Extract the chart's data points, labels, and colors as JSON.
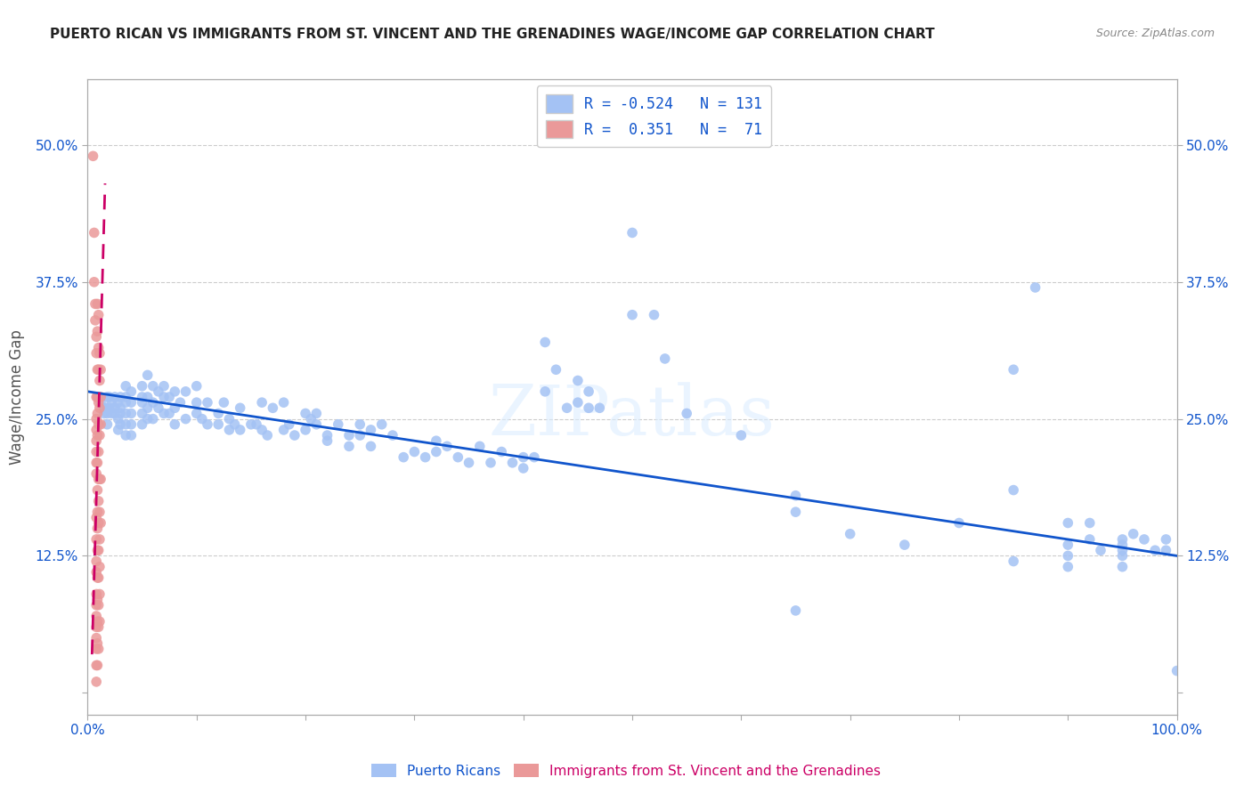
{
  "title": "PUERTO RICAN VS IMMIGRANTS FROM ST. VINCENT AND THE GRENADINES WAGE/INCOME GAP CORRELATION CHART",
  "source": "Source: ZipAtlas.com",
  "ylabel": "Wage/Income Gap",
  "ytick_labels": [
    "",
    "12.5%",
    "25.0%",
    "37.5%",
    "50.0%"
  ],
  "ytick_values": [
    0,
    0.125,
    0.25,
    0.375,
    0.5
  ],
  "xlim": [
    0,
    1.0
  ],
  "ylim": [
    -0.02,
    0.56
  ],
  "legend_r1": "R = -0.524",
  "legend_n1": "N = 131",
  "legend_r2": "R =  0.351",
  "legend_n2": "N =  71",
  "blue_color": "#a4c2f4",
  "pink_color": "#ea9999",
  "blue_line_color": "#1155cc",
  "pink_line_color": "#cc0066",
  "blue_scatter": [
    [
      0.01,
      0.27
    ],
    [
      0.012,
      0.265
    ],
    [
      0.015,
      0.26
    ],
    [
      0.015,
      0.255
    ],
    [
      0.018,
      0.27
    ],
    [
      0.018,
      0.26
    ],
    [
      0.018,
      0.255
    ],
    [
      0.018,
      0.245
    ],
    [
      0.02,
      0.27
    ],
    [
      0.02,
      0.26
    ],
    [
      0.022,
      0.265
    ],
    [
      0.022,
      0.255
    ],
    [
      0.025,
      0.27
    ],
    [
      0.025,
      0.26
    ],
    [
      0.025,
      0.255
    ],
    [
      0.028,
      0.265
    ],
    [
      0.028,
      0.25
    ],
    [
      0.028,
      0.24
    ],
    [
      0.03,
      0.27
    ],
    [
      0.03,
      0.26
    ],
    [
      0.03,
      0.255
    ],
    [
      0.03,
      0.245
    ],
    [
      0.035,
      0.28
    ],
    [
      0.035,
      0.27
    ],
    [
      0.035,
      0.265
    ],
    [
      0.035,
      0.255
    ],
    [
      0.035,
      0.245
    ],
    [
      0.035,
      0.235
    ],
    [
      0.04,
      0.275
    ],
    [
      0.04,
      0.265
    ],
    [
      0.04,
      0.255
    ],
    [
      0.04,
      0.245
    ],
    [
      0.04,
      0.235
    ],
    [
      0.05,
      0.28
    ],
    [
      0.05,
      0.27
    ],
    [
      0.05,
      0.265
    ],
    [
      0.05,
      0.255
    ],
    [
      0.05,
      0.245
    ],
    [
      0.055,
      0.29
    ],
    [
      0.055,
      0.27
    ],
    [
      0.055,
      0.26
    ],
    [
      0.055,
      0.25
    ],
    [
      0.06,
      0.28
    ],
    [
      0.06,
      0.265
    ],
    [
      0.06,
      0.25
    ],
    [
      0.065,
      0.275
    ],
    [
      0.065,
      0.26
    ],
    [
      0.07,
      0.28
    ],
    [
      0.07,
      0.27
    ],
    [
      0.07,
      0.255
    ],
    [
      0.075,
      0.27
    ],
    [
      0.075,
      0.255
    ],
    [
      0.08,
      0.275
    ],
    [
      0.08,
      0.26
    ],
    [
      0.08,
      0.245
    ],
    [
      0.085,
      0.265
    ],
    [
      0.09,
      0.275
    ],
    [
      0.09,
      0.25
    ],
    [
      0.1,
      0.28
    ],
    [
      0.1,
      0.265
    ],
    [
      0.1,
      0.255
    ],
    [
      0.105,
      0.25
    ],
    [
      0.11,
      0.265
    ],
    [
      0.11,
      0.245
    ],
    [
      0.12,
      0.255
    ],
    [
      0.12,
      0.245
    ],
    [
      0.125,
      0.265
    ],
    [
      0.13,
      0.25
    ],
    [
      0.13,
      0.24
    ],
    [
      0.135,
      0.245
    ],
    [
      0.14,
      0.26
    ],
    [
      0.14,
      0.24
    ],
    [
      0.15,
      0.245
    ],
    [
      0.155,
      0.245
    ],
    [
      0.16,
      0.265
    ],
    [
      0.16,
      0.24
    ],
    [
      0.165,
      0.235
    ],
    [
      0.17,
      0.26
    ],
    [
      0.18,
      0.265
    ],
    [
      0.18,
      0.24
    ],
    [
      0.185,
      0.245
    ],
    [
      0.19,
      0.235
    ],
    [
      0.2,
      0.255
    ],
    [
      0.2,
      0.24
    ],
    [
      0.205,
      0.25
    ],
    [
      0.21,
      0.255
    ],
    [
      0.21,
      0.245
    ],
    [
      0.22,
      0.235
    ],
    [
      0.22,
      0.23
    ],
    [
      0.23,
      0.245
    ],
    [
      0.24,
      0.235
    ],
    [
      0.24,
      0.225
    ],
    [
      0.25,
      0.245
    ],
    [
      0.25,
      0.235
    ],
    [
      0.26,
      0.24
    ],
    [
      0.26,
      0.225
    ],
    [
      0.27,
      0.245
    ],
    [
      0.28,
      0.235
    ],
    [
      0.29,
      0.215
    ],
    [
      0.3,
      0.22
    ],
    [
      0.31,
      0.215
    ],
    [
      0.32,
      0.23
    ],
    [
      0.32,
      0.22
    ],
    [
      0.33,
      0.225
    ],
    [
      0.34,
      0.215
    ],
    [
      0.35,
      0.21
    ],
    [
      0.36,
      0.225
    ],
    [
      0.37,
      0.21
    ],
    [
      0.38,
      0.22
    ],
    [
      0.39,
      0.21
    ],
    [
      0.4,
      0.215
    ],
    [
      0.4,
      0.205
    ],
    [
      0.41,
      0.215
    ],
    [
      0.42,
      0.275
    ],
    [
      0.42,
      0.32
    ],
    [
      0.43,
      0.295
    ],
    [
      0.44,
      0.26
    ],
    [
      0.45,
      0.285
    ],
    [
      0.45,
      0.265
    ],
    [
      0.46,
      0.275
    ],
    [
      0.46,
      0.26
    ],
    [
      0.47,
      0.26
    ],
    [
      0.5,
      0.42
    ],
    [
      0.5,
      0.345
    ],
    [
      0.52,
      0.345
    ],
    [
      0.53,
      0.305
    ],
    [
      0.55,
      0.255
    ],
    [
      0.6,
      0.235
    ],
    [
      0.65,
      0.18
    ],
    [
      0.65,
      0.165
    ],
    [
      0.65,
      0.075
    ],
    [
      0.7,
      0.145
    ],
    [
      0.75,
      0.135
    ],
    [
      0.8,
      0.155
    ],
    [
      0.85,
      0.12
    ],
    [
      0.85,
      0.185
    ],
    [
      0.85,
      0.295
    ],
    [
      0.87,
      0.37
    ],
    [
      0.9,
      0.155
    ],
    [
      0.9,
      0.135
    ],
    [
      0.9,
      0.125
    ],
    [
      0.9,
      0.115
    ],
    [
      0.92,
      0.155
    ],
    [
      0.92,
      0.14
    ],
    [
      0.93,
      0.13
    ],
    [
      0.95,
      0.14
    ],
    [
      0.95,
      0.135
    ],
    [
      0.95,
      0.13
    ],
    [
      0.95,
      0.125
    ],
    [
      0.95,
      0.115
    ],
    [
      0.96,
      0.145
    ],
    [
      0.97,
      0.14
    ],
    [
      0.98,
      0.13
    ],
    [
      0.99,
      0.14
    ],
    [
      0.99,
      0.13
    ],
    [
      1.0,
      0.02
    ]
  ],
  "pink_scatter": [
    [
      0.005,
      0.49
    ],
    [
      0.006,
      0.42
    ],
    [
      0.006,
      0.375
    ],
    [
      0.007,
      0.355
    ],
    [
      0.007,
      0.34
    ],
    [
      0.008,
      0.325
    ],
    [
      0.008,
      0.31
    ],
    [
      0.008,
      0.27
    ],
    [
      0.008,
      0.25
    ],
    [
      0.008,
      0.24
    ],
    [
      0.008,
      0.23
    ],
    [
      0.008,
      0.22
    ],
    [
      0.008,
      0.21
    ],
    [
      0.008,
      0.2
    ],
    [
      0.008,
      0.16
    ],
    [
      0.008,
      0.14
    ],
    [
      0.008,
      0.12
    ],
    [
      0.008,
      0.11
    ],
    [
      0.008,
      0.09
    ],
    [
      0.008,
      0.08
    ],
    [
      0.008,
      0.07
    ],
    [
      0.008,
      0.06
    ],
    [
      0.008,
      0.05
    ],
    [
      0.008,
      0.04
    ],
    [
      0.008,
      0.025
    ],
    [
      0.008,
      0.01
    ],
    [
      0.009,
      0.355
    ],
    [
      0.009,
      0.33
    ],
    [
      0.009,
      0.295
    ],
    [
      0.009,
      0.27
    ],
    [
      0.009,
      0.255
    ],
    [
      0.009,
      0.235
    ],
    [
      0.009,
      0.21
    ],
    [
      0.009,
      0.185
    ],
    [
      0.009,
      0.165
    ],
    [
      0.009,
      0.15
    ],
    [
      0.009,
      0.13
    ],
    [
      0.009,
      0.105
    ],
    [
      0.009,
      0.085
    ],
    [
      0.009,
      0.065
    ],
    [
      0.009,
      0.045
    ],
    [
      0.009,
      0.025
    ],
    [
      0.01,
      0.345
    ],
    [
      0.01,
      0.315
    ],
    [
      0.01,
      0.295
    ],
    [
      0.01,
      0.265
    ],
    [
      0.01,
      0.245
    ],
    [
      0.01,
      0.22
    ],
    [
      0.01,
      0.195
    ],
    [
      0.01,
      0.175
    ],
    [
      0.01,
      0.155
    ],
    [
      0.01,
      0.13
    ],
    [
      0.01,
      0.105
    ],
    [
      0.01,
      0.08
    ],
    [
      0.01,
      0.06
    ],
    [
      0.01,
      0.04
    ],
    [
      0.011,
      0.31
    ],
    [
      0.011,
      0.285
    ],
    [
      0.011,
      0.26
    ],
    [
      0.011,
      0.235
    ],
    [
      0.011,
      0.195
    ],
    [
      0.011,
      0.165
    ],
    [
      0.011,
      0.14
    ],
    [
      0.011,
      0.115
    ],
    [
      0.011,
      0.09
    ],
    [
      0.011,
      0.065
    ],
    [
      0.012,
      0.295
    ],
    [
      0.012,
      0.27
    ],
    [
      0.012,
      0.245
    ],
    [
      0.012,
      0.195
    ],
    [
      0.012,
      0.155
    ]
  ],
  "blue_trend_x": [
    0.0,
    1.0
  ],
  "blue_trend_y_start": 0.275,
  "blue_trend_y_end": 0.125,
  "pink_trend_x": [
    0.004,
    0.016
  ],
  "pink_trend_y_start": 0.035,
  "pink_trend_y_end": 0.465,
  "watermark": "ZIPatlas",
  "background_color": "#ffffff",
  "grid_color": "#cccccc"
}
